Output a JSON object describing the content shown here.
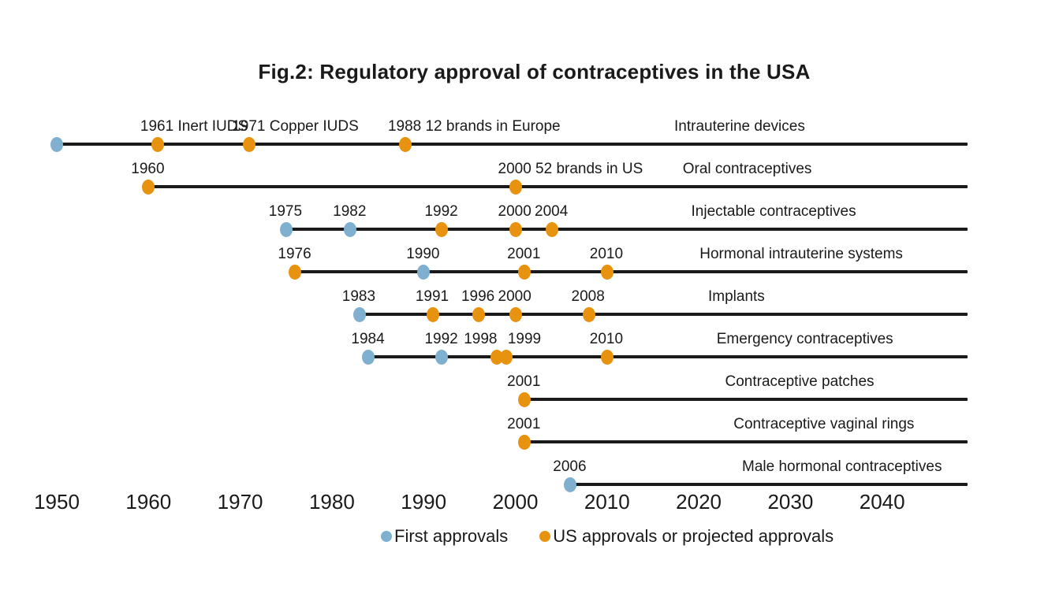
{
  "title": "Fig.2: Regulatory approval of contraceptives in the USA",
  "colors": {
    "first_approval": "#7FB0CF",
    "us_approval": "#E8930F",
    "line": "#1A1A1A",
    "text": "#1A1A1A",
    "background": "#FFFFFF"
  },
  "legend": {
    "position": "bottom-center",
    "entries": [
      {
        "label": "First approvals",
        "type": "first_approval"
      },
      {
        "label": "US approvals or projected approvals",
        "type": "us_approval"
      }
    ]
  },
  "chart_data": {
    "type": "scatter",
    "subtype": "timeline",
    "title": "Fig.2: Regulatory approval of contraceptives in the USA",
    "xlabel": "",
    "ylabel": "",
    "grid": false,
    "x_axis": {
      "ticks": [
        1950,
        1960,
        1970,
        1980,
        1990,
        2000,
        2010,
        2020,
        2030,
        2040
      ],
      "range": [
        1950,
        2050
      ]
    },
    "rows": [
      {
        "category": "Intrauterine devices",
        "events": [
          {
            "year": 1950,
            "type": "first_approval",
            "label": ""
          },
          {
            "year": 1961,
            "type": "us_approval",
            "label": "1961 Inert IUDS"
          },
          {
            "year": 1971,
            "type": "us_approval",
            "label": "1971 Copper IUDS"
          },
          {
            "year": 1988,
            "type": "us_approval",
            "label": "1988 12 brands in Europe"
          }
        ]
      },
      {
        "category": "Oral contraceptives",
        "events": [
          {
            "year": 1960,
            "type": "us_approval",
            "label": "1960"
          },
          {
            "year": 2000,
            "type": "us_approval",
            "label": "2000 52 brands in US"
          }
        ]
      },
      {
        "category": "Injectable contraceptives",
        "events": [
          {
            "year": 1975,
            "type": "first_approval",
            "label": "1975"
          },
          {
            "year": 1982,
            "type": "first_approval",
            "label": "1982"
          },
          {
            "year": 1992,
            "type": "us_approval",
            "label": "1992"
          },
          {
            "year": 2000,
            "type": "us_approval",
            "label": "2000"
          },
          {
            "year": 2004,
            "type": "us_approval",
            "label": "2004"
          }
        ]
      },
      {
        "category": "Hormonal intrauterine systems",
        "events": [
          {
            "year": 1976,
            "type": "us_approval",
            "label": "1976"
          },
          {
            "year": 1990,
            "type": "first_approval",
            "label": "1990"
          },
          {
            "year": 2001,
            "type": "us_approval",
            "label": "2001"
          },
          {
            "year": 2010,
            "type": "us_approval",
            "label": "2010"
          }
        ]
      },
      {
        "category": "Implants",
        "events": [
          {
            "year": 1983,
            "type": "first_approval",
            "label": "1983"
          },
          {
            "year": 1991,
            "type": "us_approval",
            "label": "1991"
          },
          {
            "year": 1996,
            "type": "us_approval",
            "label": "1996"
          },
          {
            "year": 2000,
            "type": "us_approval",
            "label": "2000"
          },
          {
            "year": 2008,
            "type": "us_approval",
            "label": "2008"
          }
        ]
      },
      {
        "category": "Emergency contraceptives",
        "events": [
          {
            "year": 1984,
            "type": "first_approval",
            "label": "1984"
          },
          {
            "year": 1992,
            "type": "first_approval",
            "label": "1992"
          },
          {
            "year": 1998,
            "type": "us_approval",
            "label": "1998",
            "label_dx": -20
          },
          {
            "year": 1999,
            "type": "us_approval",
            "label": "1999",
            "label_dx": 24
          },
          {
            "year": 2010,
            "type": "us_approval",
            "label": "2010"
          }
        ]
      },
      {
        "category": "Contraceptive patches",
        "events": [
          {
            "year": 2001,
            "type": "us_approval",
            "label": "2001"
          }
        ]
      },
      {
        "category": "Contraceptive vaginal rings",
        "events": [
          {
            "year": 2001,
            "type": "us_approval",
            "label": "2001"
          }
        ]
      },
      {
        "category": "Male hormonal contraceptives",
        "events": [
          {
            "year": 2006,
            "type": "first_approval",
            "label": "2006"
          }
        ]
      }
    ]
  }
}
